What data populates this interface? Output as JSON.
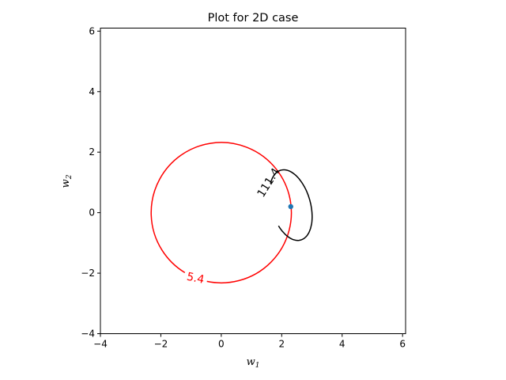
{
  "chart_data": {
    "type": "contour",
    "title": "Plot for 2D case",
    "xlabel": {
      "base": "w",
      "sub": "1"
    },
    "ylabel": {
      "base": "w",
      "sub": "2"
    },
    "xlim": [
      -4,
      6.1
    ],
    "ylim": [
      -4,
      6.1
    ],
    "xticks": [
      -4,
      -2,
      0,
      2,
      4,
      6
    ],
    "yticks": [
      -4,
      -2,
      0,
      2,
      4,
      6
    ],
    "xtick_labels": [
      "−4",
      "−2",
      "0",
      "2",
      "4",
      "6"
    ],
    "ytick_labels": [
      "−4",
      "−2",
      "0",
      "2",
      "4",
      "6"
    ],
    "grid": false,
    "contours": [
      {
        "level_label": "5.4",
        "color": "#ff0000",
        "shape": "circle",
        "center": [
          0,
          0
        ],
        "radius": 2.32,
        "label_position": [
          -0.85,
          -2.15
        ]
      },
      {
        "level_label": "111.4",
        "color": "#000000",
        "shape": "ellipse",
        "center": [
          2.3,
          0.25
        ],
        "semi_axes": [
          0.65,
          1.2
        ],
        "label_position": [
          1.55,
          1.0
        ]
      }
    ],
    "points": [
      {
        "x": 2.3,
        "y": 0.2,
        "color": "#1f77b4"
      }
    ]
  }
}
